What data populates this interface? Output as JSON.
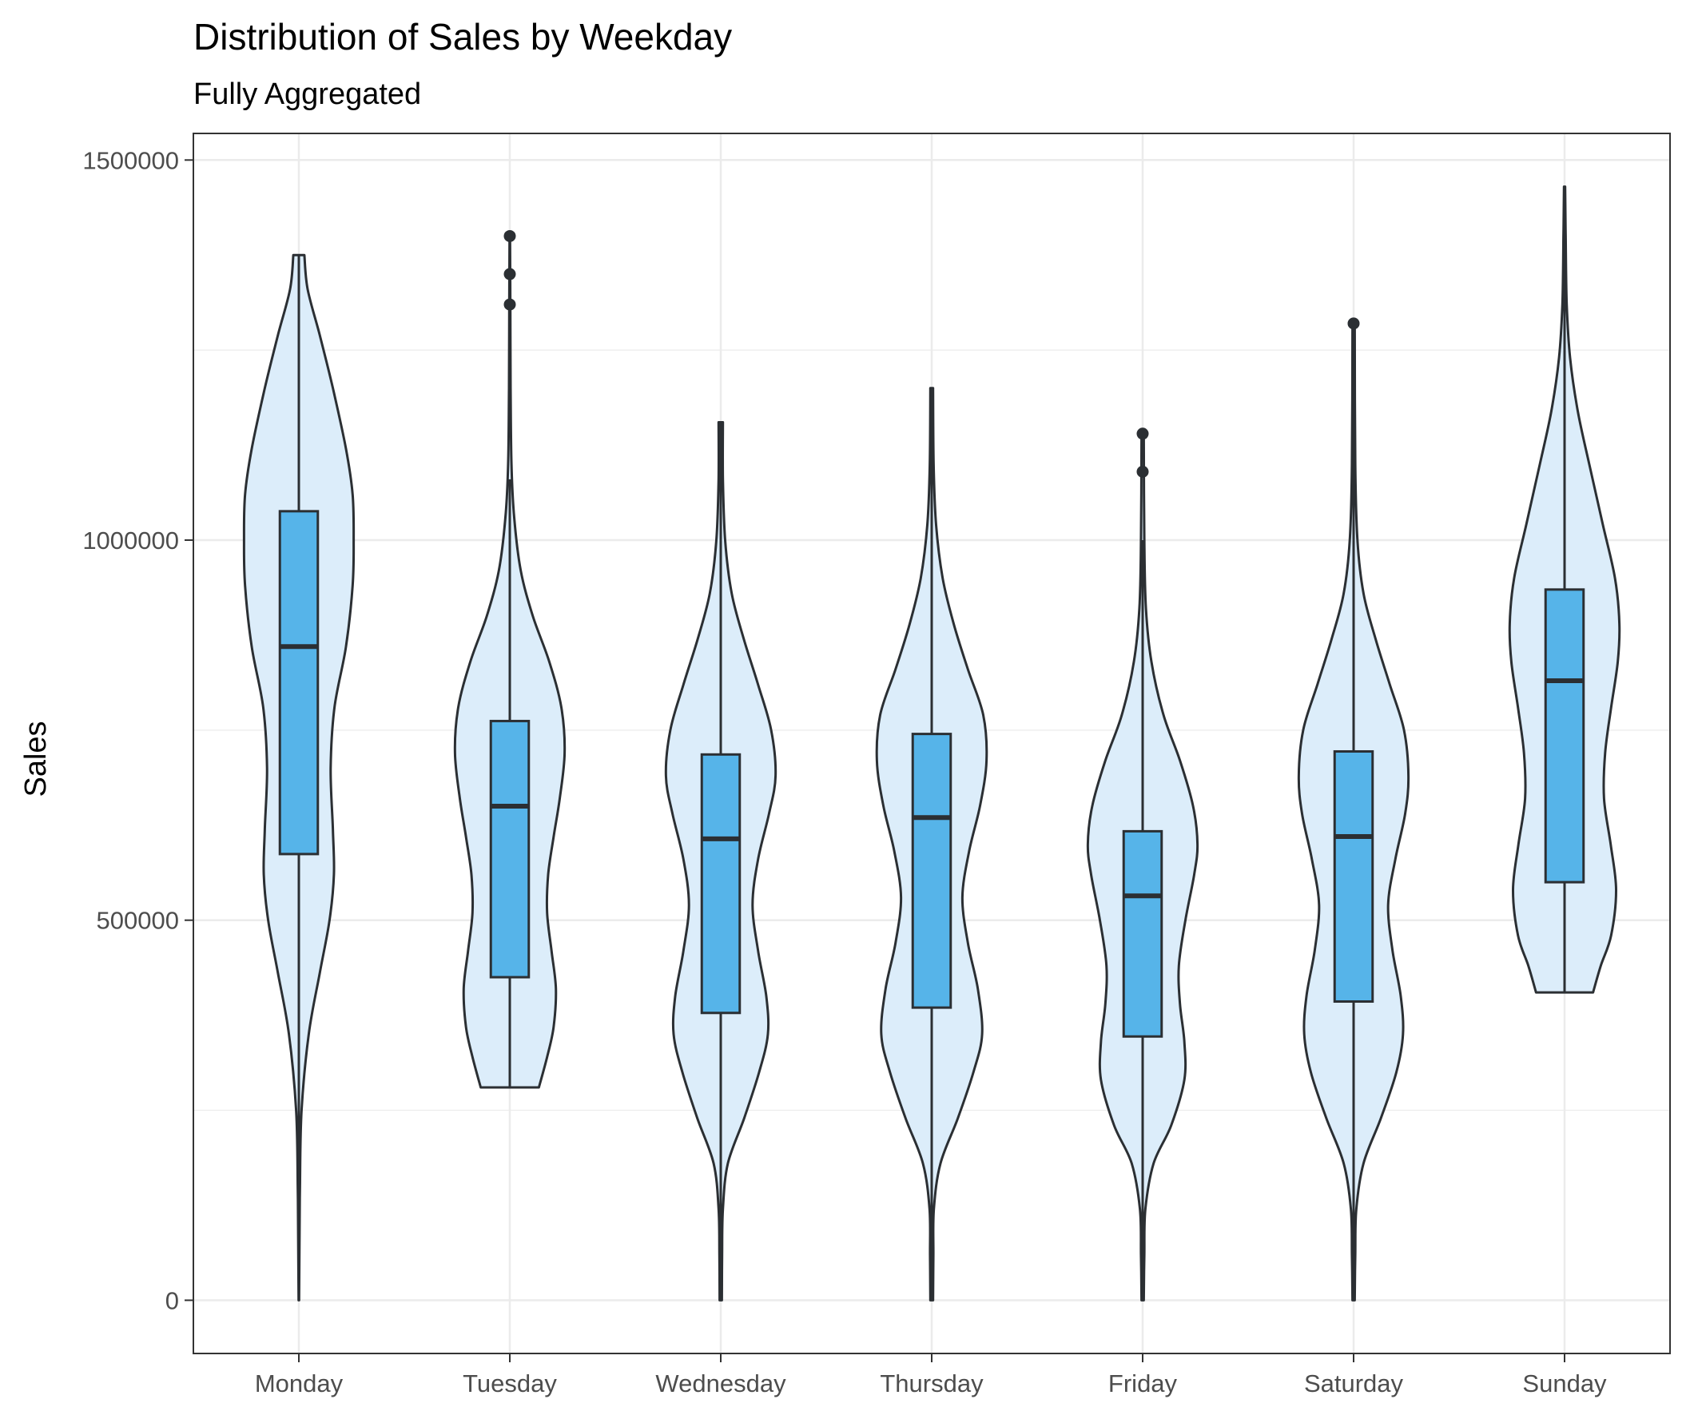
{
  "chart_data": {
    "type": "violin",
    "title": "Distribution of Sales by Weekday",
    "subtitle": "Fully Aggregated",
    "xlabel": "",
    "ylabel": "Sales",
    "ylim": [
      -70000,
      1535000
    ],
    "yticks": [
      0,
      500000,
      1000000,
      1500000
    ],
    "ytick_labels": [
      "0",
      "500000",
      "1000000",
      "1500000"
    ],
    "grid": true,
    "colors": {
      "violin_fill": "#dcedfa",
      "box_fill": "#56b4e9",
      "outline": "#2b2f33",
      "grid": "#ebebeb",
      "panel_border": "#333333"
    },
    "categories": [
      "Monday",
      "Tuesday",
      "Wednesday",
      "Thursday",
      "Friday",
      "Saturday",
      "Sunday"
    ],
    "series": [
      {
        "category": "Monday",
        "min": 0,
        "max": 1375000,
        "q1": 587000,
        "median": 860000,
        "q3": 1038000,
        "whisker_low": 0,
        "whisker_high": 1375000,
        "outliers": [],
        "density": [
          [
            0,
            0.005
          ],
          [
            60000,
            0.01
          ],
          [
            150000,
            0.02
          ],
          [
            250000,
            0.05
          ],
          [
            350000,
            0.18
          ],
          [
            430000,
            0.38
          ],
          [
            500000,
            0.56
          ],
          [
            560000,
            0.64
          ],
          [
            620000,
            0.62
          ],
          [
            700000,
            0.58
          ],
          [
            780000,
            0.65
          ],
          [
            860000,
            0.86
          ],
          [
            940000,
            0.98
          ],
          [
            1000000,
            1.0
          ],
          [
            1060000,
            0.98
          ],
          [
            1120000,
            0.86
          ],
          [
            1200000,
            0.62
          ],
          [
            1270000,
            0.38
          ],
          [
            1330000,
            0.16
          ],
          [
            1375000,
            0.1
          ]
        ]
      },
      {
        "category": "Tuesday",
        "min": 280000,
        "max": 1400000,
        "q1": 425000,
        "median": 650000,
        "q3": 762000,
        "whisker_low": 280000,
        "whisker_high": 1080000,
        "outliers": [
          1310000,
          1350000,
          1400000
        ],
        "density": [
          [
            280000,
            0.53
          ],
          [
            320000,
            0.68
          ],
          [
            360000,
            0.8
          ],
          [
            410000,
            0.84
          ],
          [
            460000,
            0.76
          ],
          [
            510000,
            0.68
          ],
          [
            560000,
            0.7
          ],
          [
            610000,
            0.8
          ],
          [
            660000,
            0.91
          ],
          [
            720000,
            1.0
          ],
          [
            780000,
            0.94
          ],
          [
            840000,
            0.72
          ],
          [
            900000,
            0.42
          ],
          [
            960000,
            0.2
          ],
          [
            1030000,
            0.08
          ],
          [
            1100000,
            0.03
          ],
          [
            1200000,
            0.015
          ],
          [
            1300000,
            0.01
          ],
          [
            1400000,
            0.005
          ]
        ]
      },
      {
        "category": "Wednesday",
        "min": 0,
        "max": 1155000,
        "q1": 378000,
        "median": 607000,
        "q3": 718000,
        "whisker_low": 0,
        "whisker_high": 1155000,
        "outliers": [],
        "density": [
          [
            0,
            0.02
          ],
          [
            60000,
            0.025
          ],
          [
            120000,
            0.04
          ],
          [
            180000,
            0.13
          ],
          [
            240000,
            0.43
          ],
          [
            300000,
            0.7
          ],
          [
            350000,
            0.86
          ],
          [
            400000,
            0.83
          ],
          [
            460000,
            0.68
          ],
          [
            520000,
            0.58
          ],
          [
            580000,
            0.68
          ],
          [
            640000,
            0.88
          ],
          [
            690000,
            1.0
          ],
          [
            750000,
            0.92
          ],
          [
            810000,
            0.68
          ],
          [
            870000,
            0.42
          ],
          [
            930000,
            0.2
          ],
          [
            1000000,
            0.08
          ],
          [
            1080000,
            0.04
          ],
          [
            1155000,
            0.04
          ]
        ]
      },
      {
        "category": "Thursday",
        "min": 0,
        "max": 1200000,
        "q1": 385000,
        "median": 635000,
        "q3": 745000,
        "whisker_low": 0,
        "whisker_high": 1200000,
        "outliers": [],
        "density": [
          [
            0,
            0.025
          ],
          [
            60000,
            0.03
          ],
          [
            120000,
            0.04
          ],
          [
            180000,
            0.16
          ],
          [
            240000,
            0.48
          ],
          [
            300000,
            0.76
          ],
          [
            350000,
            0.92
          ],
          [
            410000,
            0.84
          ],
          [
            470000,
            0.66
          ],
          [
            530000,
            0.56
          ],
          [
            590000,
            0.68
          ],
          [
            650000,
            0.88
          ],
          [
            710000,
            1.0
          ],
          [
            770000,
            0.94
          ],
          [
            830000,
            0.66
          ],
          [
            890000,
            0.4
          ],
          [
            950000,
            0.2
          ],
          [
            1020000,
            0.08
          ],
          [
            1100000,
            0.035
          ],
          [
            1200000,
            0.025
          ]
        ]
      },
      {
        "category": "Friday",
        "min": 0,
        "max": 1140000,
        "q1": 347000,
        "median": 532000,
        "q3": 617000,
        "whisker_low": 0,
        "whisker_high": 1000000,
        "outliers": [
          1090000,
          1140000
        ],
        "density": [
          [
            0,
            0.02
          ],
          [
            60000,
            0.03
          ],
          [
            120000,
            0.05
          ],
          [
            180000,
            0.2
          ],
          [
            230000,
            0.52
          ],
          [
            290000,
            0.76
          ],
          [
            340000,
            0.76
          ],
          [
            390000,
            0.68
          ],
          [
            440000,
            0.66
          ],
          [
            500000,
            0.78
          ],
          [
            560000,
            0.94
          ],
          [
            600000,
            1.0
          ],
          [
            650000,
            0.92
          ],
          [
            710000,
            0.68
          ],
          [
            770000,
            0.38
          ],
          [
            840000,
            0.16
          ],
          [
            910000,
            0.06
          ],
          [
            1000000,
            0.03
          ],
          [
            1140000,
            0.02
          ]
        ]
      },
      {
        "category": "Saturday",
        "min": 0,
        "max": 1285000,
        "q1": 393000,
        "median": 610000,
        "q3": 722000,
        "whisker_low": 0,
        "whisker_high": 1285000,
        "outliers": [
          1285000
        ],
        "density": [
          [
            0,
            0.02
          ],
          [
            60000,
            0.03
          ],
          [
            120000,
            0.05
          ],
          [
            180000,
            0.18
          ],
          [
            240000,
            0.5
          ],
          [
            300000,
            0.78
          ],
          [
            350000,
            0.9
          ],
          [
            400000,
            0.86
          ],
          [
            460000,
            0.71
          ],
          [
            520000,
            0.63
          ],
          [
            580000,
            0.76
          ],
          [
            640000,
            0.94
          ],
          [
            690000,
            1.0
          ],
          [
            750000,
            0.92
          ],
          [
            810000,
            0.66
          ],
          [
            870000,
            0.4
          ],
          [
            930000,
            0.18
          ],
          [
            1000000,
            0.07
          ],
          [
            1100000,
            0.03
          ],
          [
            1285000,
            0.02
          ]
        ]
      },
      {
        "category": "Sunday",
        "min": 405000,
        "max": 1465000,
        "q1": 550000,
        "median": 815000,
        "q3": 935000,
        "whisker_low": 405000,
        "whisker_high": 1465000,
        "outliers": [],
        "density": [
          [
            405000,
            0.52
          ],
          [
            440000,
            0.66
          ],
          [
            480000,
            0.85
          ],
          [
            540000,
            0.94
          ],
          [
            600000,
            0.84
          ],
          [
            660000,
            0.72
          ],
          [
            720000,
            0.74
          ],
          [
            780000,
            0.85
          ],
          [
            840000,
            0.97
          ],
          [
            890000,
            1.0
          ],
          [
            950000,
            0.92
          ],
          [
            1020000,
            0.7
          ],
          [
            1100000,
            0.45
          ],
          [
            1170000,
            0.24
          ],
          [
            1240000,
            0.1
          ],
          [
            1310000,
            0.04
          ],
          [
            1400000,
            0.02
          ],
          [
            1465000,
            0.01
          ]
        ]
      }
    ]
  }
}
